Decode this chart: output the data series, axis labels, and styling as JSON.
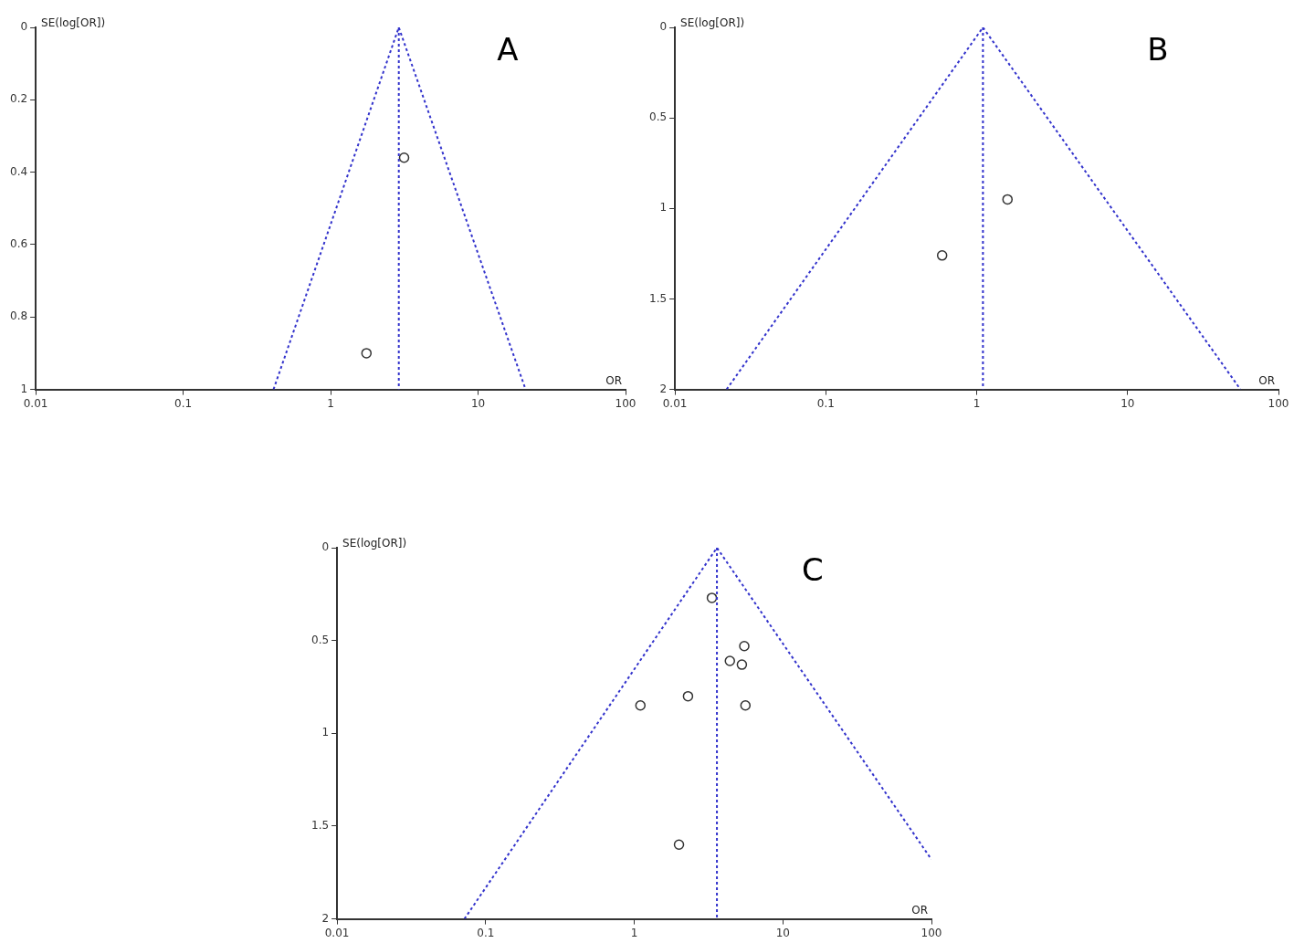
{
  "chart_data": [
    {
      "type": "scatter",
      "title": "A",
      "xlabel": "OR",
      "ylabel": "SE(log[OR])",
      "log": "x",
      "xlim": [
        0.01,
        100
      ],
      "xticks": [
        0.01,
        0.1,
        1,
        10,
        100
      ],
      "ylim": [
        1,
        0
      ],
      "yticks": [
        0,
        0.2,
        0.4,
        0.6,
        0.8,
        1
      ],
      "grid": false,
      "legend": false,
      "ref_lines": [
        {
          "axis": "x",
          "value": 2.9,
          "color": "#3333cc",
          "line_style": "dotted"
        }
      ],
      "series": [
        {
          "type": "line",
          "color": "#3333cc",
          "line_style": "dotted",
          "marker": "none",
          "x": [
            0.41,
            2.9,
            21
          ],
          "values": [
            1,
            0,
            1
          ]
        },
        {
          "type": "scatter",
          "color": "#333333",
          "marker": "circle",
          "x": [
            3.15,
            1.75
          ],
          "values": [
            0.36,
            0.9
          ]
        }
      ]
    },
    {
      "type": "scatter",
      "title": "B",
      "xlabel": "OR",
      "ylabel": "SE(log[OR])",
      "log": "x",
      "xlim": [
        0.01,
        100
      ],
      "xticks": [
        0.01,
        0.1,
        1,
        10,
        100
      ],
      "ylim": [
        2,
        0
      ],
      "yticks": [
        0,
        0.5,
        1,
        1.5,
        2
      ],
      "grid": false,
      "legend": false,
      "ref_lines": [
        {
          "axis": "x",
          "value": 1.1,
          "color": "#3333cc",
          "line_style": "dotted"
        }
      ],
      "series": [
        {
          "type": "line",
          "color": "#3333cc",
          "line_style": "dotted",
          "marker": "none",
          "x": [
            0.022,
            1.1,
            56
          ],
          "values": [
            2,
            0,
            2
          ]
        },
        {
          "type": "scatter",
          "color": "#333333",
          "marker": "circle",
          "x": [
            1.6,
            0.59
          ],
          "values": [
            0.95,
            1.26
          ]
        }
      ]
    },
    {
      "type": "scatter",
      "title": "C",
      "xlabel": "OR",
      "ylabel": "SE(log[OR])",
      "log": "x",
      "xlim": [
        0.01,
        100
      ],
      "xticks": [
        0.01,
        0.1,
        1,
        10,
        100
      ],
      "ylim": [
        2,
        0
      ],
      "yticks": [
        0,
        0.5,
        1,
        1.5,
        2
      ],
      "grid": false,
      "legend": false,
      "ref_lines": [
        {
          "axis": "x",
          "value": 3.6,
          "color": "#3333cc",
          "line_style": "dotted"
        }
      ],
      "series": [
        {
          "type": "line",
          "color": "#3333cc",
          "line_style": "dotted",
          "marker": "none",
          "x": [
            0.072,
            3.6,
            100
          ],
          "values": [
            2,
            0,
            1.68
          ]
        },
        {
          "type": "scatter",
          "color": "#333333",
          "marker": "circle",
          "x": [
            3.33,
            5.5,
            4.4,
            5.3,
            2.3,
            1.1,
            5.6,
            2.0
          ],
          "values": [
            0.27,
            0.53,
            0.61,
            0.63,
            0.8,
            0.85,
            0.85,
            1.6
          ]
        }
      ]
    }
  ]
}
